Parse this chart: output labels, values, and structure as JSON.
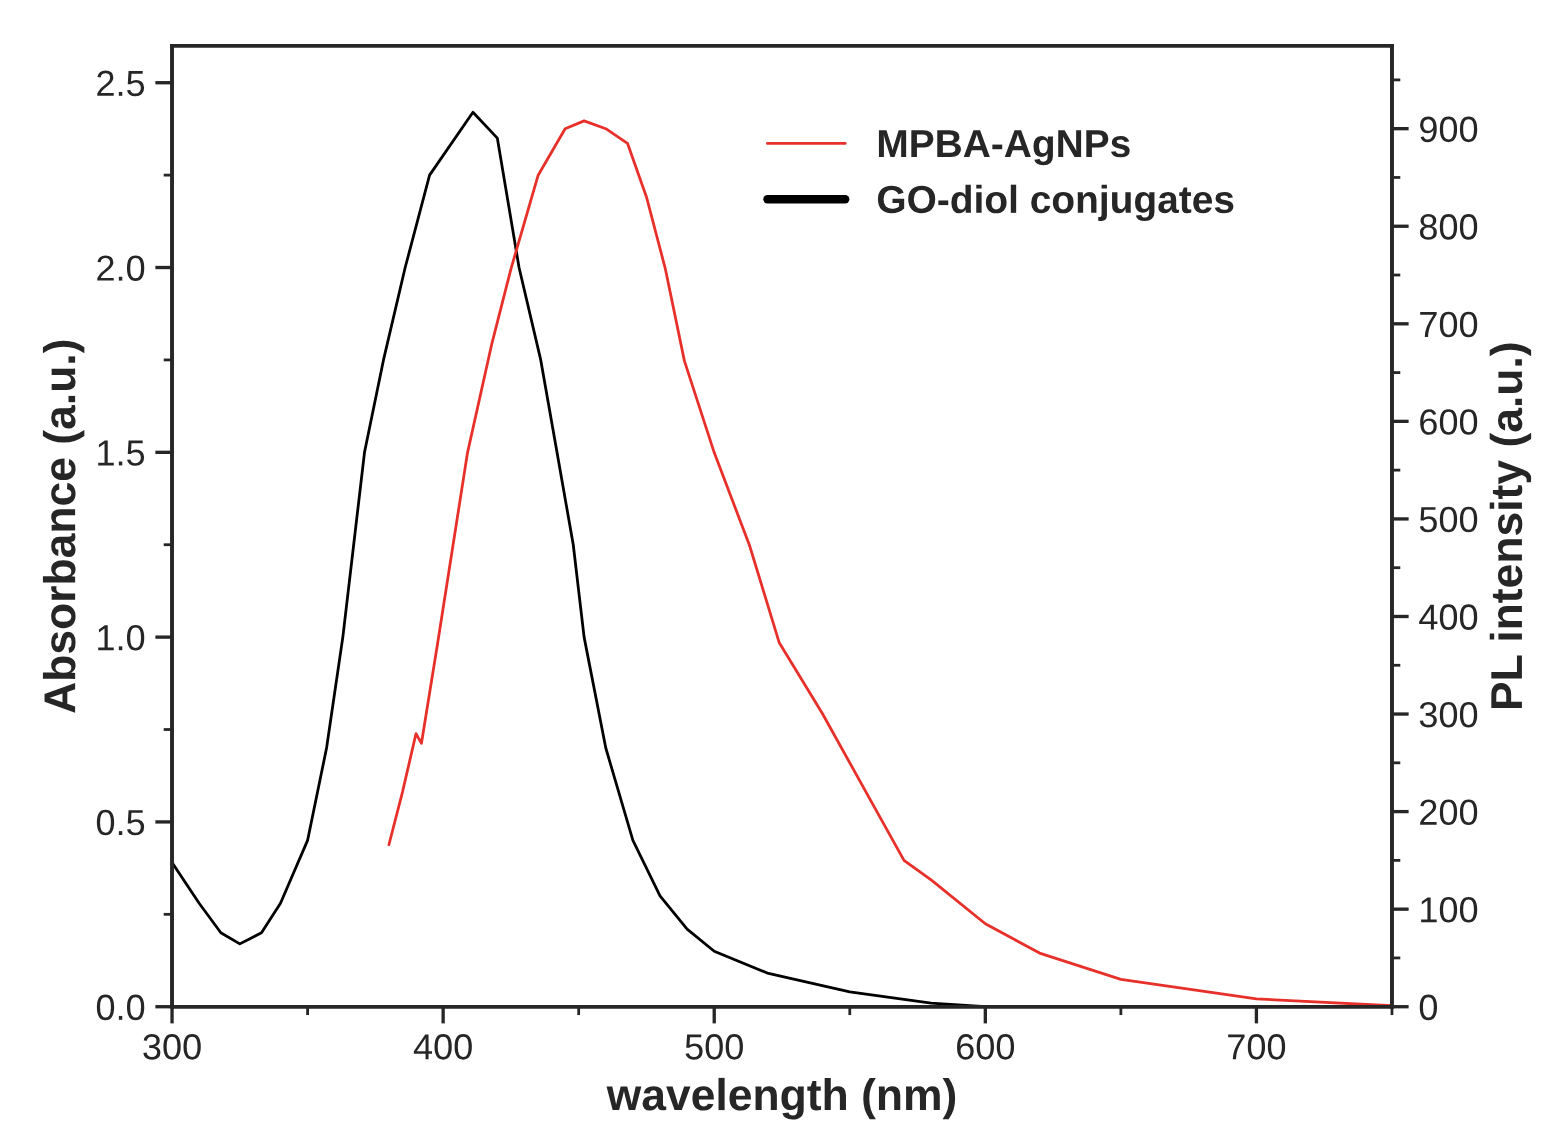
{
  "chart_data": {
    "type": "line",
    "xlabel": "wavelength (nm)",
    "ylabel": "Absorbance (a.u.)",
    "y2label": "PL intensity (a.u.)",
    "xlim": [
      300,
      750
    ],
    "xticks": [
      300,
      400,
      500,
      600,
      700
    ],
    "ylim": [
      0,
      2.6
    ],
    "yticks": [
      {
        "value": 0,
        "label": "0.0"
      },
      {
        "value": 0.5,
        "label": "0.5"
      },
      {
        "value": 1,
        "label": "1.0"
      },
      {
        "value": 1.5,
        "label": "1.5"
      },
      {
        "value": 2,
        "label": "2.0"
      },
      {
        "value": 2.5,
        "label": "2.5"
      }
    ],
    "y2lim": [
      0,
      985
    ],
    "y2ticks": [
      0,
      100,
      200,
      300,
      400,
      500,
      600,
      700,
      800,
      900
    ],
    "legend": "top right",
    "grid": false,
    "series": [
      {
        "name": "MPBA-AgNPs",
        "color": "#e8302a",
        "axis": "y2",
        "x": [
          380,
          385,
          390,
          392,
          398,
          409,
          418,
          425,
          435,
          445,
          452,
          460,
          468,
          475,
          482,
          489,
          500,
          513,
          524,
          540,
          560,
          570,
          580,
          600,
          620,
          650,
          700,
          750
        ],
        "values": [
          166,
          220,
          280,
          270,
          373,
          568,
          680,
          756,
          852,
          900,
          908,
          900,
          885,
          830,
          756,
          662,
          568,
          473,
          373,
          300,
          200,
          150,
          130,
          85,
          55,
          28,
          8,
          1
        ]
      },
      {
        "name": "GO-diol conjugates",
        "color": "#000000",
        "x": [
          300,
          310,
          318,
          325,
          333,
          340,
          350,
          357,
          363,
          367,
          371,
          378,
          386,
          395,
          411,
          420,
          428,
          436,
          442,
          448,
          452,
          460,
          470,
          480,
          490,
          500,
          520,
          550,
          580,
          600
        ],
        "values": [
          0.39,
          0.28,
          0.2,
          0.17,
          0.2,
          0.28,
          0.45,
          0.7,
          1.0,
          1.25,
          1.5,
          1.75,
          2.0,
          2.25,
          2.42,
          2.35,
          2.0,
          1.75,
          1.5,
          1.25,
          1.0,
          0.7,
          0.45,
          0.3,
          0.21,
          0.15,
          0.09,
          0.04,
          0.01,
          0.0
        ]
      }
    ]
  }
}
